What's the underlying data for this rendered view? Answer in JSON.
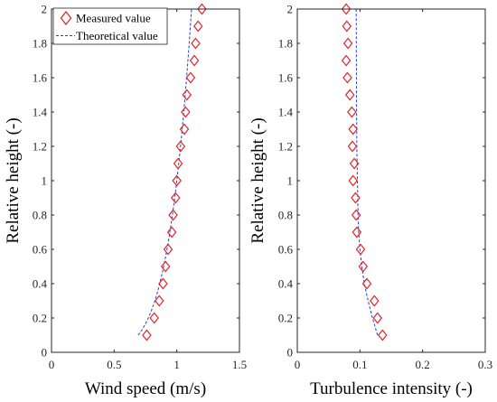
{
  "chart_data": [
    {
      "type": "scatter",
      "xlabel": "Wind speed (m/s)",
      "ylabel": "Relative height (-)",
      "xlim": [
        0,
        1.5
      ],
      "ylim": [
        0,
        2
      ],
      "xticks": [
        "0",
        "0.5",
        "1",
        "1.5"
      ],
      "yticks": [
        "0",
        "0.2",
        "0.4",
        "0.6",
        "0.8",
        "1",
        "1.2",
        "1.4",
        "1.6",
        "1.8",
        "2"
      ],
      "grid": false,
      "legend": "top-left",
      "series": [
        {
          "name": "Measured value",
          "marker": "diamond",
          "color": "#e3242b",
          "points": [
            [
              0.76,
              0.1
            ],
            [
              0.82,
              0.2
            ],
            [
              0.86,
              0.3
            ],
            [
              0.89,
              0.4
            ],
            [
              0.91,
              0.5
            ],
            [
              0.93,
              0.6
            ],
            [
              0.96,
              0.7
            ],
            [
              0.97,
              0.8
            ],
            [
              0.99,
              0.9
            ],
            [
              1.0,
              1.0
            ],
            [
              1.01,
              1.1
            ],
            [
              1.03,
              1.2
            ],
            [
              1.06,
              1.3
            ],
            [
              1.07,
              1.4
            ],
            [
              1.08,
              1.5
            ],
            [
              1.11,
              1.6
            ],
            [
              1.14,
              1.7
            ],
            [
              1.15,
              1.8
            ],
            [
              1.17,
              1.9
            ],
            [
              1.2,
              2.0
            ]
          ]
        },
        {
          "name": "Theoretical value",
          "style": "dashed",
          "color": "#1f3fd0",
          "alpha": 0.16,
          "x_ref": 1.0,
          "y_range": [
            0.1,
            2.0
          ]
        }
      ]
    },
    {
      "type": "scatter",
      "xlabel": "Turbulence intensity (-)",
      "ylabel": "Relative height (-)",
      "xlim": [
        0,
        0.3
      ],
      "ylim": [
        0,
        2
      ],
      "xticks": [
        "0",
        "0.1",
        "0.2",
        "0.3"
      ],
      "yticks": [
        "0",
        "0.2",
        "0.4",
        "0.6",
        "0.8",
        "1",
        "1.2",
        "1.4",
        "1.6",
        "1.8",
        "2"
      ],
      "grid": false,
      "series": [
        {
          "name": "Measured value",
          "marker": "diamond",
          "color": "#e3242b",
          "points": [
            [
              0.136,
              0.1
            ],
            [
              0.128,
              0.2
            ],
            [
              0.123,
              0.3
            ],
            [
              0.111,
              0.4
            ],
            [
              0.105,
              0.5
            ],
            [
              0.101,
              0.6
            ],
            [
              0.095,
              0.7
            ],
            [
              0.094,
              0.8
            ],
            [
              0.093,
              0.9
            ],
            [
              0.089,
              1.0
            ],
            [
              0.091,
              1.1
            ],
            [
              0.088,
              1.2
            ],
            [
              0.089,
              1.3
            ],
            [
              0.087,
              1.4
            ],
            [
              0.084,
              1.5
            ],
            [
              0.08,
              1.6
            ],
            [
              0.078,
              1.7
            ],
            [
              0.081,
              1.8
            ],
            [
              0.079,
              1.9
            ],
            [
              0.078,
              2.0
            ]
          ]
        },
        {
          "name": "Theoretical value",
          "style": "dashed",
          "color": "#1f3fd0",
          "y_range": [
            0.1,
            2.0
          ],
          "points": [
            [
              0.128,
              0.1
            ],
            [
              0.12,
              0.2
            ],
            [
              0.113,
              0.3
            ],
            [
              0.107,
              0.4
            ],
            [
              0.103,
              0.5
            ],
            [
              0.1,
              0.6
            ],
            [
              0.098,
              0.7
            ],
            [
              0.097,
              0.8
            ],
            [
              0.096,
              1.0
            ],
            [
              0.095,
              1.2
            ],
            [
              0.0945,
              1.5
            ],
            [
              0.094,
              2.0
            ]
          ]
        }
      ]
    }
  ]
}
